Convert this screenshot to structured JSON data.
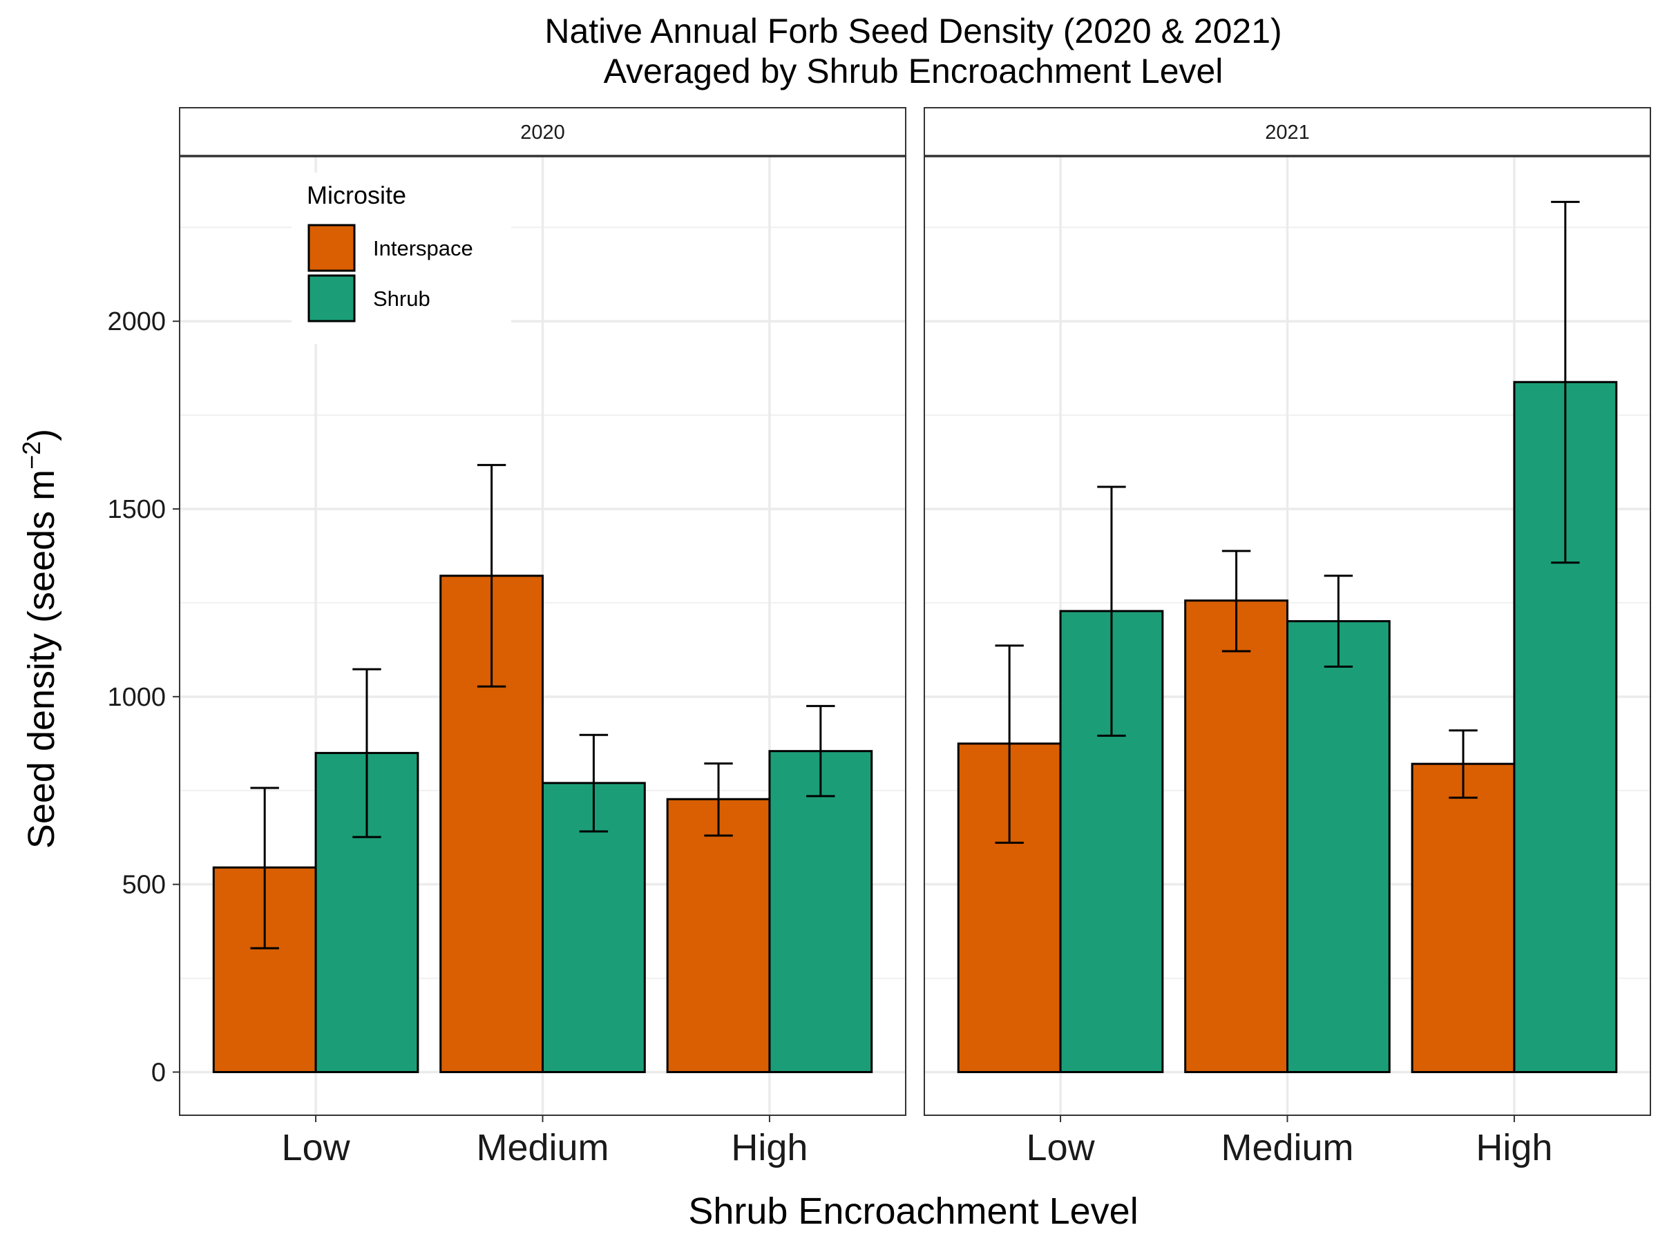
{
  "chart_data": {
    "type": "bar",
    "title": "Native Annual Forb Seed Density (2020 & 2021)",
    "subtitle": "Averaged by Shrub Encroachment Level",
    "xlabel": "Shrub Encroachment Level",
    "ylabel": "Seed density (seeds m",
    "ylabel_superscript": "−2",
    "ylabel_close": ")",
    "ylim": [
      -115,
      2440
    ],
    "yticks": [
      0,
      500,
      1000,
      1500,
      2000
    ],
    "categories": [
      "Low",
      "Medium",
      "High"
    ],
    "legend": {
      "title": "Microsite",
      "position": "top-left",
      "entries": [
        {
          "name": "Interspace",
          "color": "#D95F02"
        },
        {
          "name": "Shrub",
          "color": "#1B9E77"
        }
      ]
    },
    "grid": true,
    "panels": [
      {
        "label": "2020",
        "series": [
          {
            "name": "Interspace",
            "color": "#D95F02",
            "values": [
              545,
              1322,
              727
            ],
            "lower": [
              330,
              1027,
              630
            ],
            "upper": [
              757,
              1617,
              822
            ]
          },
          {
            "name": "Shrub",
            "color": "#1B9E77",
            "values": [
              850,
              770,
              855
            ],
            "lower": [
              626,
              641,
              735
            ],
            "upper": [
              1073,
              898,
              975
            ]
          }
        ]
      },
      {
        "label": "2021",
        "series": [
          {
            "name": "Interspace",
            "color": "#D95F02",
            "values": [
              875,
              1256,
              821
            ],
            "lower": [
              611,
              1121,
              731
            ],
            "upper": [
              1136,
              1388,
              910
            ]
          },
          {
            "name": "Shrub",
            "color": "#1B9E77",
            "values": [
              1228,
              1201,
              1838
            ],
            "lower": [
              896,
              1080,
              1357
            ],
            "upper": [
              1559,
              1322,
              2318
            ]
          }
        ]
      }
    ]
  }
}
